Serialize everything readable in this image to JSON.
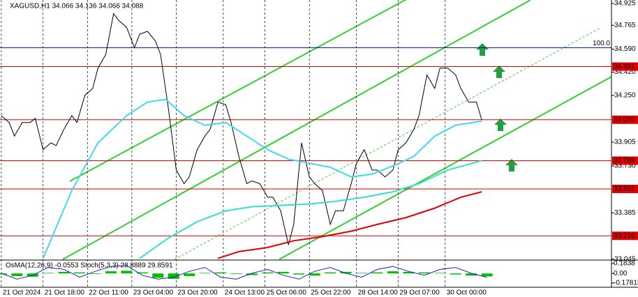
{
  "chart_data": {
    "type": "line",
    "title": "XAGUSD,H1  34.066 34.136 34.066 34.088",
    "xlim": [
      -0.5,
      233.7
    ],
    "ylim": [
      33.043,
      34.951
    ],
    "yticks": [
      34.925,
      34.765,
      {
        "value": 34.59,
        "label": "34.590"
      },
      {
        "value": 34.42,
        "label": "34.420"
      },
      {
        "value": 34.25,
        "label": "34.250"
      },
      33.905,
      {
        "value": 33.73,
        "label": "33.730"
      },
      33.385,
      33.045
    ],
    "xticks": [
      {
        "value": 0,
        "label": "21 Oct 2024"
      },
      {
        "value": 16,
        "label": "21 Oct 18:00"
      },
      {
        "value": 33,
        "label": "22 Oct 11:00"
      },
      {
        "value": 50,
        "label": "23 Oct 04:00"
      },
      {
        "value": 67,
        "label": "23 Oct 20:00"
      },
      {
        "value": 85,
        "label": "24 Oct 13:00"
      },
      {
        "value": 101,
        "label": "25 Oct 06:00"
      },
      {
        "value": 118,
        "label": "25 Oct 22:00"
      },
      {
        "value": 136,
        "label": "28 Oct 14:00"
      },
      {
        "value": 152,
        "label": "29 Oct 07:00"
      },
      {
        "value": 170,
        "label": "30 Oct 00:00"
      }
    ],
    "grid": true,
    "series": [
      {
        "color": "#000000",
        "x": [
          0,
          3,
          5,
          8,
          11,
          13,
          16,
          19,
          21,
          24,
          27,
          29,
          32,
          35,
          37,
          40,
          43,
          45,
          48,
          51,
          53,
          56,
          59,
          61,
          64,
          67,
          70,
          72,
          75,
          78,
          80,
          83,
          86,
          88,
          91,
          94,
          96,
          99,
          102,
          104,
          107,
          110,
          112,
          115,
          118,
          120,
          123,
          126,
          128,
          131,
          134,
          136,
          139,
          142,
          144,
          147,
          150,
          152,
          155,
          158,
          160,
          163,
          166,
          168,
          171,
          174,
          176,
          179,
          182,
          184
        ],
        "values": [
          34.1,
          34.05,
          33.95,
          34.05,
          34.05,
          34.08,
          33.85,
          33.9,
          33.88,
          34.0,
          34.1,
          34.05,
          34.25,
          34.3,
          34.45,
          34.55,
          34.85,
          34.8,
          34.75,
          34.6,
          34.7,
          34.72,
          34.65,
          34.55,
          34.15,
          33.7,
          33.6,
          33.65,
          33.85,
          33.95,
          34.0,
          34.2,
          34.18,
          34.05,
          33.8,
          33.6,
          33.62,
          33.6,
          33.5,
          33.5,
          33.4,
          33.15,
          33.3,
          33.9,
          33.65,
          33.6,
          33.55,
          33.3,
          33.4,
          33.4,
          33.6,
          33.75,
          33.85,
          33.7,
          33.7,
          33.65,
          33.7,
          33.85,
          33.9,
          34.0,
          34.1,
          34.4,
          34.3,
          34.45,
          34.45,
          34.4,
          34.3,
          34.2,
          34.2,
          34.07
        ]
      },
      {
        "color": "#40d8f0",
        "x": [
          16,
          27,
          37,
          48,
          56,
          63,
          70,
          78,
          86,
          94,
          102,
          110,
          118,
          126,
          134,
          142,
          150,
          158,
          166,
          174,
          184
        ],
        "values": [
          33.05,
          33.55,
          33.9,
          34.1,
          34.2,
          34.22,
          34.1,
          34.03,
          34.05,
          33.95,
          33.85,
          33.78,
          33.75,
          33.72,
          33.65,
          33.67,
          33.73,
          33.8,
          33.95,
          34.03,
          34.06
        ]
      },
      {
        "color": "#30e0c8",
        "x": [
          53,
          64,
          75,
          86,
          96,
          107,
          118,
          128,
          139,
          150,
          160,
          171,
          184
        ],
        "values": [
          33.05,
          33.2,
          33.32,
          33.4,
          33.43,
          33.44,
          33.45,
          33.47,
          33.5,
          33.54,
          33.6,
          33.7,
          33.77
        ]
      },
      {
        "color": "#e00000",
        "x": [
          83,
          91,
          102,
          112,
          123,
          134,
          144,
          155,
          166,
          176,
          184
        ],
        "values": [
          33.05,
          33.1,
          33.13,
          33.18,
          33.21,
          33.25,
          33.3,
          33.35,
          33.42,
          33.5,
          33.54
        ]
      }
    ],
    "levels": [
      {
        "value": 34.461,
        "color": "#e00000"
      },
      {
        "value": {
          "value": 34.07,
          "label": "34.070"
        },
        "color": "#e00000"
      },
      {
        "value": 33.769,
        "color": "#e00000"
      },
      {
        "value": 33.561,
        "color": "#e00000"
      },
      {
        "value": 33.216,
        "color": "#e00000"
      }
    ],
    "fib": {
      "value": 34.6,
      "label": "100.0",
      "color": "#0000c0"
    },
    "indicator": {
      "title": "OsMA(12,26,9) -0.0553  Stoch(5,3,3) 28.8889 29.8591",
      "ylim": [
        -0.17815,
        0.1838
      ],
      "yticks": [
        0.1838,
        {
          "value": 0,
          "label": "0.00"
        },
        -0.17815
      ],
      "y2lim": [
        0,
        100
      ],
      "x": [
        0,
        6,
        12,
        18,
        24,
        30,
        36,
        42,
        48,
        54,
        60,
        66,
        72,
        78,
        84,
        90,
        96,
        102,
        108,
        114,
        120,
        126,
        132,
        138,
        144,
        150,
        156,
        162,
        168,
        174,
        180,
        186
      ],
      "osma": {
        "color": "#00c000",
        "values": [
          -0.02,
          -0.05,
          -0.06,
          0.01,
          0.03,
          0.02,
          -0.01,
          0.04,
          0.05,
          0.02,
          -0.08,
          -0.1,
          -0.05,
          0.01,
          0.02,
          -0.01,
          -0.03,
          0.02,
          0.03,
          -0.02,
          -0.04,
          0.02,
          0.03,
          0.01,
          0.02,
          0.04,
          0.03,
          0.02,
          0.01,
          -0.02,
          -0.04,
          -0.055
        ]
      },
      "stoch": {
        "color": "#2020c0",
        "axis": "y2",
        "values": [
          50,
          20,
          40,
          80,
          70,
          30,
          60,
          85,
          90,
          40,
          20,
          30,
          60,
          80,
          30,
          20,
          50,
          70,
          40,
          20,
          60,
          80,
          50,
          30,
          70,
          85,
          60,
          40,
          70,
          80,
          50,
          29
        ]
      }
    }
  }
}
